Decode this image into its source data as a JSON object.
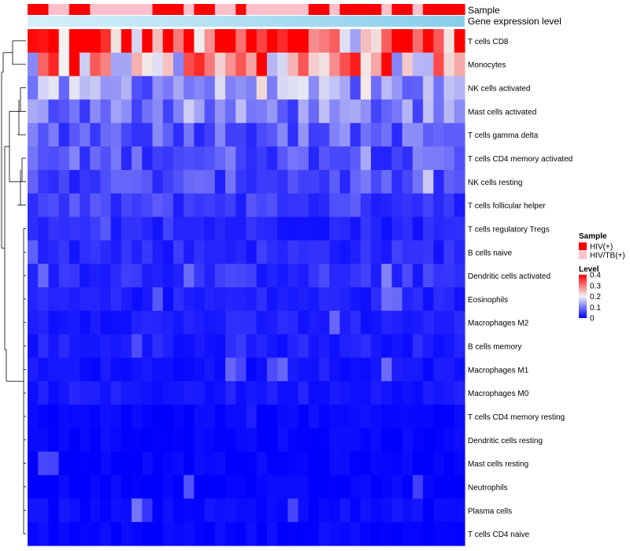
{
  "chart_data": {
    "type": "heatmap",
    "title": "",
    "annotations": {
      "sample_label": "Sample",
      "gene_label": "Gene expression level"
    },
    "rows": [
      "T cells CD8",
      "Monocytes",
      "NK cells activated",
      "Mast cells activated",
      "T cells gamma delta",
      "T cells CD4 memory activated",
      "NK cells resting",
      "T cells follicular helper",
      "T cells regulatory  Tregs",
      "B cells naive",
      "Dendritic cells activated",
      "Eosinophils",
      "Macrophages M2",
      "B cells memory",
      "Macrophages M1",
      "Macrophages M0",
      "T cells CD4 memory resting",
      "Dendritic cells resting",
      "Mast cells resting",
      "Neutrophils",
      "Plasma cells",
      "T cells CD4 naive"
    ],
    "n_columns": 42,
    "sample_groups": [
      "HIV(+)",
      "HIV(+)",
      "HIV/TB(+)",
      "HIV/TB(+)",
      "HIV(+)",
      "HIV(+)",
      "HIV/TB(+)",
      "HIV/TB(+)",
      "HIV/TB(+)",
      "HIV/TB(+)",
      "HIV/TB(+)",
      "HIV/TB(+)",
      "HIV(+)",
      "HIV(+)",
      "HIV(+)",
      "HIV/TB(+)",
      "HIV(+)",
      "HIV(+)",
      "HIV/TB(+)",
      "HIV/TB(+)",
      "HIV(+)",
      "HIV/TB(+)",
      "HIV/TB(+)",
      "HIV/TB(+)",
      "HIV/TB(+)",
      "HIV/TB(+)",
      "HIV/TB(+)",
      "HIV(+)",
      "HIV(+)",
      "HIV/TB(+)",
      "HIV(+)",
      "HIV(+)",
      "HIV(+)",
      "HIV(+)",
      "HIV/TB(+)",
      "HIV(+)",
      "HIV(+)",
      "HIV/TB(+)",
      "HIV(+)",
      "HIV(+)",
      "HIV(+)",
      "HIV(+)"
    ],
    "row_means": [
      0.33,
      0.27,
      0.12,
      0.1,
      0.08,
      0.07,
      0.06,
      0.05,
      0.03,
      0.035,
      0.04,
      0.025,
      0.025,
      0.025,
      0.015,
      0.02,
      0.005,
      0.005,
      0.002,
      0.001,
      0.01,
      0.005
    ],
    "values_note": "Per-cell fraction values estimated by row mean; color scale 0 (blue) to 0.4 (red), white at 0.2",
    "color_scale": {
      "min": 0,
      "mid": 0.2,
      "max": 0.4,
      "low_color": "#0000ff",
      "mid_color": "#f2f2f2",
      "high_color": "#ff0000"
    },
    "legend": {
      "sample_title": "Sample",
      "sample_entries": [
        {
          "label": "HIV(+)",
          "color": "#ff0000"
        },
        {
          "label": "HIV/TB(+)",
          "color": "#ffc0cb"
        }
      ],
      "level_title": "Level",
      "level_ticks": [
        "0.4",
        "0.3",
        "0.2",
        "0.1",
        "0"
      ]
    },
    "gene_bar_colors": [
      "#87ceeb",
      "#d6f0fa"
    ]
  }
}
